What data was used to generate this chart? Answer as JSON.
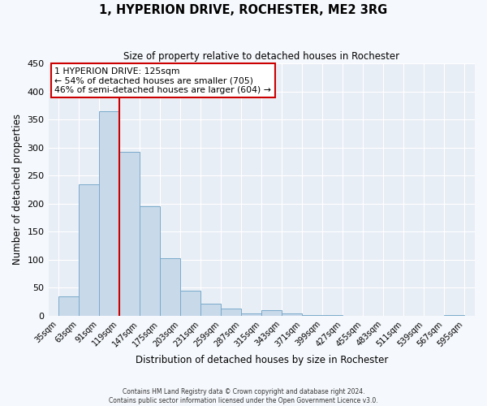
{
  "title": "1, HYPERION DRIVE, ROCHESTER, ME2 3RG",
  "subtitle": "Size of property relative to detached houses in Rochester",
  "xlabel": "Distribution of detached houses by size in Rochester",
  "ylabel": "Number of detached properties",
  "bar_color": "#c8d9ea",
  "bar_edge_color": "#7aaacb",
  "fig_bg_color": "#f5f8fc",
  "axes_bg_color": "#e8eef5",
  "grid_color": "#ffffff",
  "annotation_box_color": "#ffffff",
  "annotation_box_edge": "#cc0000",
  "vline_color": "#cc0000",
  "vline_x": 119,
  "annotation_line1": "1 HYPERION DRIVE: 125sqm",
  "annotation_line2": "← 54% of detached houses are smaller (705)",
  "annotation_line3": "46% of semi-detached houses are larger (604) →",
  "bin_edges": [
    35,
    63,
    91,
    119,
    147,
    175,
    203,
    231,
    259,
    287,
    315,
    343,
    371,
    399,
    427,
    455,
    483,
    511,
    539,
    567,
    595
  ],
  "bar_heights": [
    35,
    235,
    365,
    293,
    196,
    103,
    44,
    22,
    13,
    4,
    10,
    4,
    1,
    1,
    0,
    0,
    0,
    0,
    0,
    2
  ],
  "ylim": [
    0,
    450
  ],
  "yticks": [
    0,
    50,
    100,
    150,
    200,
    250,
    300,
    350,
    400,
    450
  ],
  "footer_line1": "Contains HM Land Registry data © Crown copyright and database right 2024.",
  "footer_line2": "Contains public sector information licensed under the Open Government Licence v3.0."
}
